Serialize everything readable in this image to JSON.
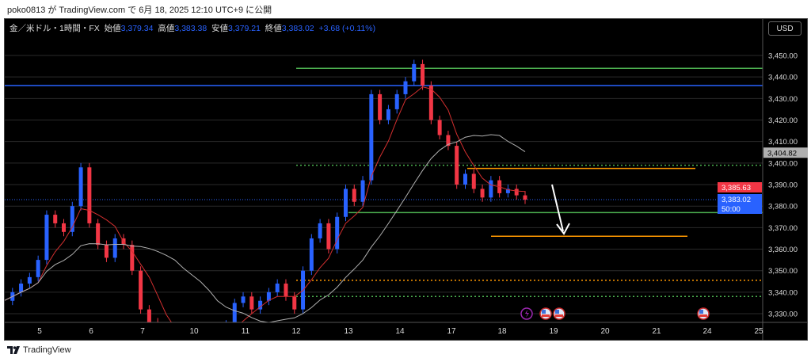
{
  "published": "poko0813 が TradingView.com で 6月 18, 2025 12:10 UTC+9 に公開",
  "legend": {
    "symbol": "金／米ドル・1時間・FX",
    "open_label": "始値",
    "open": "3,379.34",
    "high_label": "高値",
    "high": "3,383.38",
    "low_label": "安値",
    "low": "3,379.21",
    "close_label": "終値",
    "close": "3,383.02",
    "change": "+3.68 (+0.11%)"
  },
  "currency_button": "USD",
  "brand": "TradingView",
  "colors": {
    "up": "#2962ff",
    "down": "#f23645",
    "ma_fast": "#d32f2f",
    "ma_slow": "#b0b0b0",
    "green": "#4caf50",
    "orange": "#ff9800",
    "blue_line": "#2962ff"
  },
  "chart_data": {
    "type": "candlestick",
    "interval": "4h sampled closes (approx.)",
    "closes": [
      3336,
      3340,
      3344,
      3347,
      3355,
      3376,
      3372,
      3368,
      3380,
      3398,
      3372,
      3362,
      3356,
      3365,
      3362,
      3350,
      3332,
      3326,
      3322,
      3318,
      3320,
      3316,
      3322,
      3318,
      3315,
      3320,
      3325,
      3335,
      3338,
      3332,
      3336,
      3340,
      3344,
      3338,
      3332,
      3350,
      3365,
      3372,
      3360,
      3375,
      3388,
      3382,
      3392,
      3432,
      3420,
      3425,
      3432,
      3438,
      3446,
      3436,
      3420,
      3413,
      3408,
      3390,
      3395,
      3388,
      3384,
      3392,
      3386,
      3388,
      3385,
      3383
    ],
    "ylim": [
      3325,
      3458
    ],
    "y_ticks": [
      "3,330.00",
      "3,340.00",
      "3,350.00",
      "3,360.00",
      "3,370.00",
      "3,380.00",
      "3,390.00",
      "3,400.00",
      "3,410.00",
      "3,420.00",
      "3,430.00",
      "3,440.00",
      "3,450.00"
    ],
    "x_ticks": [
      "5",
      "6",
      "7",
      "10",
      "11",
      "12",
      "13",
      "14",
      "17",
      "18",
      "19",
      "20",
      "21",
      "24",
      "25"
    ],
    "price_labels": [
      {
        "text": "3,404.82",
        "value": 3404.82,
        "bg": "#b0b0b0",
        "fg": "#000"
      },
      {
        "text": "3,385.63",
        "value": 3385.63,
        "bg": "#f23645",
        "fg": "#fff"
      },
      {
        "text": "3,383.02",
        "value": 3383.02,
        "bg": "#2962ff",
        "fg": "#fff"
      }
    ],
    "countdown": "50:00",
    "levels": [
      {
        "value": 3444,
        "color": "#4caf50",
        "style": "solid",
        "from_tick": "12"
      },
      {
        "value": 3436,
        "color": "#2962ff",
        "style": "solid",
        "from_tick": "start"
      },
      {
        "value": 3399,
        "color": "#4caf50",
        "style": "dotted",
        "from_tick": "12"
      },
      {
        "value": 3397.5,
        "color": "#ff9800",
        "style": "solid",
        "from_tick": "17"
      },
      {
        "value": 3377,
        "color": "#4caf50",
        "style": "solid",
        "from_tick": "13"
      },
      {
        "value": 3366,
        "color": "#ff9800",
        "style": "solid",
        "from_tick": "18"
      },
      {
        "value": 3345.5,
        "color": "#ff9800",
        "style": "dotted",
        "from_tick": "12"
      },
      {
        "value": 3338,
        "color": "#4caf50",
        "style": "dotted",
        "from_tick": "12"
      }
    ],
    "events": [
      "lightning-icon",
      "us-flag-icon",
      "us-flag-icon",
      "us-flag-icon"
    ]
  }
}
